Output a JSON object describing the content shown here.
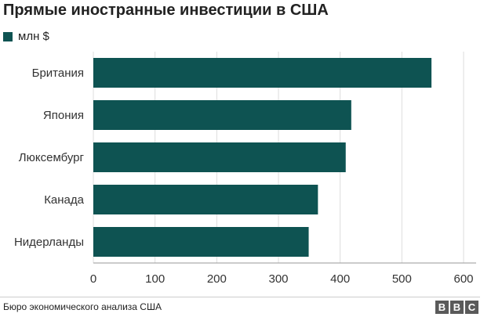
{
  "title": "Прямые иностранные инвестиции в США",
  "legend": {
    "label": "млн $"
  },
  "source": "Бюро экономического анализа США",
  "logo": {
    "letters": [
      "B",
      "B",
      "C"
    ]
  },
  "colors": {
    "bar": "#0e5352",
    "grid": "#dddddd",
    "axis": "#999999",
    "text": "#333333"
  },
  "chart_data": {
    "type": "bar",
    "orientation": "horizontal",
    "unit": "млн $",
    "categories": [
      "Британия",
      "Япония",
      "Люксембург",
      "Канада",
      "Нидерланды"
    ],
    "values": [
      548,
      418,
      409,
      364,
      349
    ],
    "xlim": [
      0,
      600
    ],
    "ticks": [
      0,
      100,
      200,
      300,
      400,
      500,
      600
    ],
    "grid": true,
    "legend_position": "top-left"
  }
}
